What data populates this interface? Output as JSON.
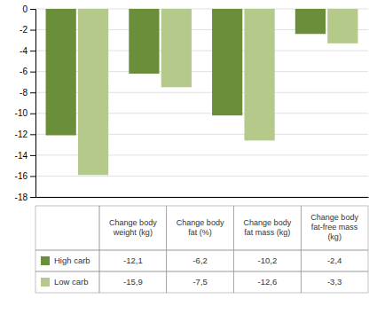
{
  "chart_data": {
    "type": "bar",
    "categories": [
      "Change body\nweight (kg)",
      "Change body\nfat (%)",
      "Change body\nfat mass (kg)",
      "Change body\nfat-free mass\n(kg)"
    ],
    "series": [
      {
        "name": "High carb",
        "color": "#6b8e3a",
        "values": [
          -12.1,
          -6.2,
          -10.2,
          -2.4
        ],
        "value_labels": [
          "-12,1",
          "-6,2",
          "-10,2",
          "-2,4"
        ]
      },
      {
        "name": "Low carb",
        "color": "#b5c98a",
        "values": [
          -15.9,
          -7.5,
          -12.6,
          -3.3
        ],
        "value_labels": [
          "-15,9",
          "-7,5",
          "-12,6",
          "-3,3"
        ]
      }
    ],
    "ylim": [
      -18,
      0
    ],
    "yticks": [
      0,
      -2,
      -4,
      -6,
      -8,
      -10,
      -12,
      -14,
      -16,
      -18
    ],
    "grid": true
  }
}
